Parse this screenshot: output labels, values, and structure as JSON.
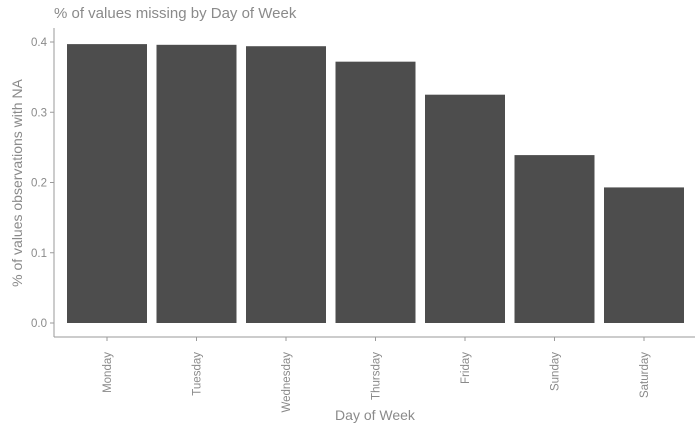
{
  "chart_data": {
    "type": "bar",
    "title": "% of values missing by Day of Week",
    "xlabel": "Day of Week",
    "ylabel": "% of values observations with NA",
    "categories": [
      "Monday",
      "Tuesday",
      "Wednesday",
      "Thursday",
      "Friday",
      "Sunday",
      "Saturday"
    ],
    "values": [
      0.397,
      0.396,
      0.394,
      0.372,
      0.325,
      0.239,
      0.193
    ],
    "ylim": [
      0,
      0.4
    ],
    "yticks": [
      0.0,
      0.1,
      0.2,
      0.3,
      0.4
    ],
    "ytick_labels": [
      "0.0",
      "0.1",
      "0.2",
      "0.3",
      "0.4"
    ],
    "grid": false,
    "bar_color": "#4d4d4d",
    "text_color": "#8a8a8a"
  }
}
